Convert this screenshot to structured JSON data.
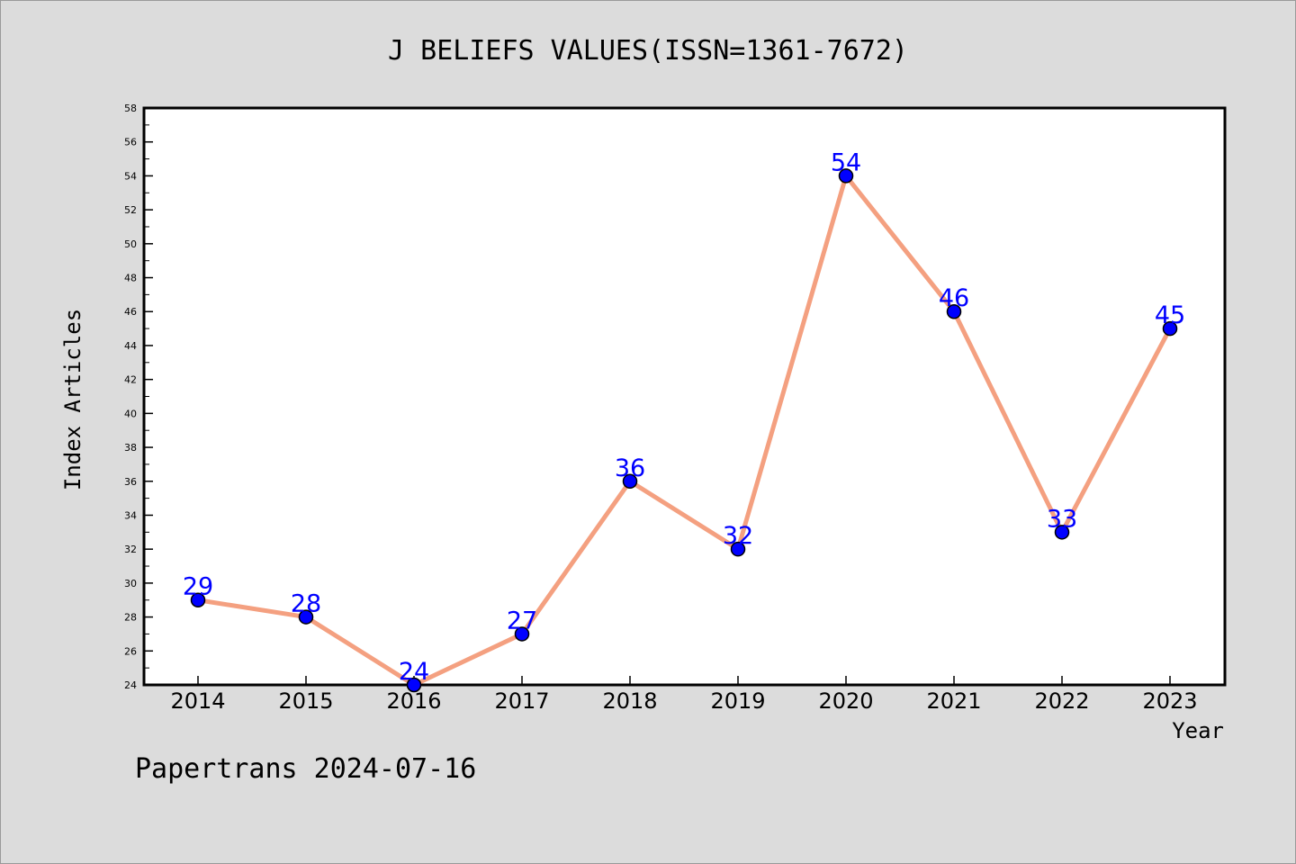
{
  "footer": "Papertrans 2024-07-16",
  "colors": {
    "background": "#dcdcdc",
    "plot_background": "#ffffff",
    "line": "#f4a080",
    "marker": "#0000ff",
    "data_label": "#0000ff"
  },
  "chart_data": {
    "type": "line",
    "title": "J BELIEFS VALUES(ISSN=1361-7672)",
    "xlabel": "Year",
    "ylabel": "Index Articles",
    "categories": [
      "2014",
      "2015",
      "2016",
      "2017",
      "2018",
      "2019",
      "2020",
      "2021",
      "2022",
      "2023"
    ],
    "series": [
      {
        "values": [
          29,
          28,
          24,
          27,
          36,
          32,
          54,
          46,
          33,
          45
        ]
      }
    ],
    "data_labels": [
      "29",
      "28",
      "24",
      "27",
      "36",
      "32",
      "54",
      "46",
      "33",
      "45"
    ],
    "ylim": [
      24,
      58
    ],
    "yticks": [
      "24",
      "26",
      "28",
      "30",
      "32",
      "34",
      "36",
      "38",
      "40",
      "42",
      "44",
      "46",
      "48",
      "50",
      "52",
      "54",
      "56",
      "58"
    ],
    "grid": false,
    "legend": "none"
  }
}
